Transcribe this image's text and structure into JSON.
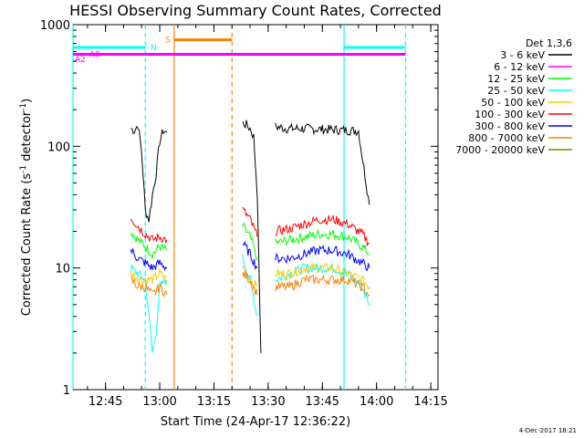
{
  "chart_data": {
    "type": "line",
    "title": "HESSI Observing Summary Count Rates, Corrected",
    "xlabel": "Start Time (24-Apr-17 12:36:22)",
    "ylabel": "Corrected Count Rate (s",
    "ylabel_sup1": "-1",
    "ylabel_mid": " detector",
    "ylabel_sup2": "-1",
    "ylabel_end": ")",
    "y_scale": "log",
    "ylim": [
      1,
      1000
    ],
    "xlim": [
      "12:36",
      "14:17"
    ],
    "x_ticks": [
      "12:45",
      "13:00",
      "13:15",
      "13:30",
      "13:45",
      "14:00",
      "14:15"
    ],
    "y_ticks": [
      "1",
      "10",
      "100",
      "1000"
    ],
    "legend_title": "Det 1,3,6",
    "legend_position": "right",
    "series": [
      {
        "name": "3 - 6 keV",
        "color": "#000000",
        "segments": [
          {
            "x": [
              "12:52",
              "12:53",
              "12:54",
              "12:55",
              "12:56",
              "12:57",
              "12:58",
              "12:59",
              "13:00",
              "13:01",
              "13:02"
            ],
            "y": [
              140,
              135,
              150,
              90,
              30,
              25,
              40,
              60,
              110,
              135,
              130
            ]
          },
          {
            "x": [
              "13:23",
              "13:24",
              "13:25",
              "13:26",
              "13:27",
              "13:28"
            ],
            "y": [
              155,
              150,
              140,
              120,
              40,
              2
            ]
          },
          {
            "x": [
              "13:32",
              "13:35",
              "13:40",
              "13:45",
              "13:50",
              "13:55",
              "13:58"
            ],
            "y": [
              145,
              140,
              140,
              138,
              136,
              134,
              33
            ]
          }
        ]
      },
      {
        "name": "6 - 12 keV",
        "color": "#ff00ff",
        "segments": []
      },
      {
        "name": "12 - 25 keV",
        "color": "#00ff00",
        "segments": [
          {
            "x": [
              "12:52",
              "12:54",
              "12:56",
              "12:58",
              "13:00",
              "13:02"
            ],
            "y": [
              20,
              17,
              15,
              13,
              15,
              14
            ]
          },
          {
            "x": [
              "13:23",
              "13:25",
              "13:27"
            ],
            "y": [
              22,
              18,
              12
            ]
          },
          {
            "x": [
              "13:32",
              "13:36",
              "13:40",
              "13:44",
              "13:48",
              "13:52",
              "13:56",
              "13:58"
            ],
            "y": [
              16,
              17,
              18,
              19,
              19,
              18,
              15,
              13
            ]
          }
        ]
      },
      {
        "name": "25 - 50 keV",
        "color": "#00ffff",
        "segments": [
          {
            "x": [
              "12:52",
              "12:54",
              "12:56",
              "12:57",
              "12:58",
              "12:59",
              "13:00",
              "13:02"
            ],
            "y": [
              10,
              9,
              8,
              4,
              2,
              3,
              7,
              8
            ]
          },
          {
            "x": [
              "13:23",
              "13:25",
              "13:27"
            ],
            "y": [
              12,
              8,
              4
            ]
          },
          {
            "x": [
              "13:32",
              "13:36",
              "13:40",
              "13:44",
              "13:48",
              "13:52",
              "13:56",
              "13:58"
            ],
            "y": [
              8,
              9,
              10,
              10,
              10,
              9,
              7,
              5
            ]
          }
        ]
      },
      {
        "name": "50 - 100 keV",
        "color": "#ffc800",
        "segments": [
          {
            "x": [
              "12:52",
              "12:55",
              "12:58",
              "13:00",
              "13:02"
            ],
            "y": [
              9,
              8,
              8,
              9,
              8
            ]
          },
          {
            "x": [
              "13:23",
              "13:25",
              "13:27"
            ],
            "y": [
              10,
              8,
              7
            ]
          },
          {
            "x": [
              "13:32",
              "13:36",
              "13:40",
              "13:44",
              "13:48",
              "13:52",
              "13:56",
              "13:58"
            ],
            "y": [
              9,
              9,
              10,
              10,
              10,
              9,
              8,
              7
            ]
          }
        ]
      },
      {
        "name": "100 - 300 keV",
        "color": "#ff0000",
        "segments": [
          {
            "x": [
              "12:52",
              "12:54",
              "12:56",
              "12:58",
              "13:00",
              "13:02"
            ],
            "y": [
              26,
              22,
              19,
              17,
              18,
              17
            ]
          },
          {
            "x": [
              "13:23",
              "13:25",
              "13:27"
            ],
            "y": [
              30,
              25,
              18
            ]
          },
          {
            "x": [
              "13:32",
              "13:36",
              "13:40",
              "13:44",
              "13:48",
              "13:52",
              "13:56",
              "13:58"
            ],
            "y": [
              20,
              21,
              23,
              25,
              25,
              23,
              19,
              16
            ]
          }
        ]
      },
      {
        "name": "300 - 800 keV",
        "color": "#0000ff",
        "segments": [
          {
            "x": [
              "12:52",
              "12:54",
              "12:56",
              "12:58",
              "13:00",
              "13:02"
            ],
            "y": [
              14,
              12,
              11,
              10,
              11,
              10
            ]
          },
          {
            "x": [
              "13:23",
              "13:25",
              "13:27"
            ],
            "y": [
              16,
              13,
              10
            ]
          },
          {
            "x": [
              "13:32",
              "13:36",
              "13:40",
              "13:44",
              "13:48",
              "13:52",
              "13:56",
              "13:58"
            ],
            "y": [
              12,
              12,
              13,
              14,
              14,
              13,
              11,
              10
            ]
          }
        ]
      },
      {
        "name": "800 - 7000 keV",
        "color": "#ff8000",
        "segments": [
          {
            "x": [
              "12:52",
              "12:54",
              "12:56",
              "12:58",
              "13:00",
              "13:02"
            ],
            "y": [
              8,
              7,
              7,
              6,
              7,
              6
            ]
          },
          {
            "x": [
              "13:23",
              "13:25",
              "13:27"
            ],
            "y": [
              9,
              8,
              6
            ]
          },
          {
            "x": [
              "13:32",
              "13:36",
              "13:40",
              "13:44",
              "13:48",
              "13:52",
              "13:56",
              "13:58"
            ],
            "y": [
              7,
              7,
              8,
              8,
              8,
              8,
              7,
              6
            ]
          }
        ]
      },
      {
        "name": "7000 - 20000 keV",
        "color": "#808000",
        "segments": []
      }
    ],
    "bars": [
      {
        "label": "N",
        "color": "#00ffff",
        "y": 650,
        "segments": [
          [
            "12:36",
            "12:56"
          ],
          [
            "13:51",
            "14:08"
          ]
        ],
        "label_at": "12:57"
      },
      {
        "label": "S",
        "color": "#ff8000",
        "y": 750,
        "segments": [
          [
            "13:04",
            "13:20"
          ]
        ],
        "label_at": "13:01"
      },
      {
        "label": "A0",
        "color": "#ff00ff",
        "y": 570,
        "segments": [
          [
            "12:36",
            "14:08"
          ]
        ],
        "label_at": "12:40"
      },
      {
        "label": "A2",
        "color": "#ff00ff",
        "y": 520,
        "segments": [],
        "label_at": "12:36"
      }
    ],
    "vlines": [
      {
        "x": "12:36",
        "color": "#00ffff",
        "dashed": false
      },
      {
        "x": "12:56",
        "color": "#00ffff",
        "dashed": true
      },
      {
        "x": "13:04",
        "color": "#ff8000",
        "dashed": false
      },
      {
        "x": "13:20",
        "color": "#ff8000",
        "dashed": true
      },
      {
        "x": "13:51",
        "color": "#00ffff",
        "dashed": false
      },
      {
        "x": "14:08",
        "color": "#00ffff",
        "dashed": true
      }
    ],
    "footer": "4-Dec-2017 18:21"
  }
}
